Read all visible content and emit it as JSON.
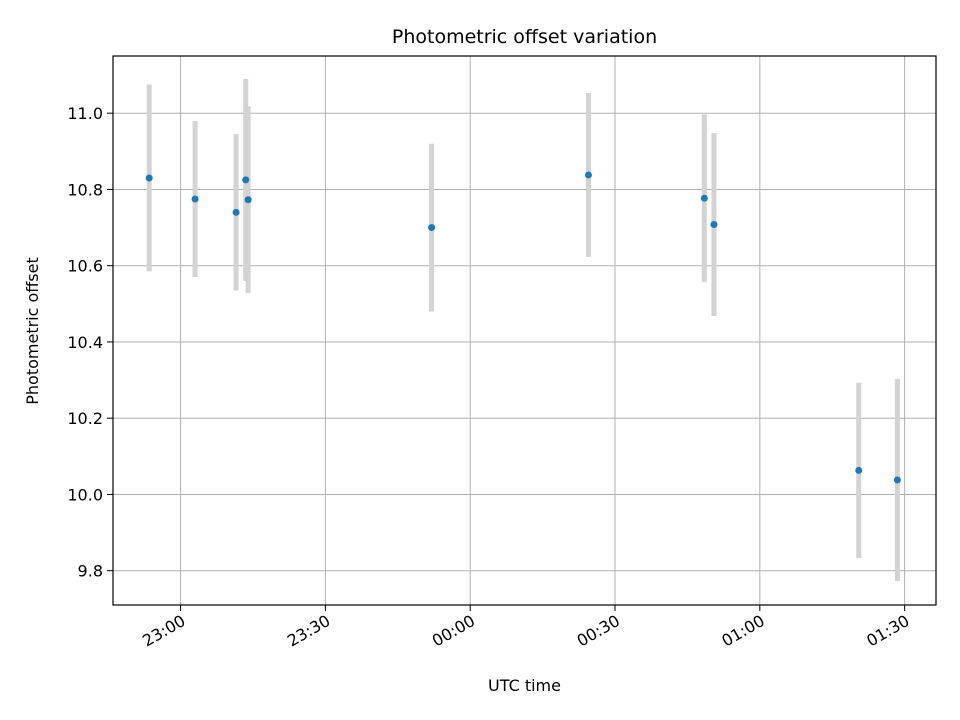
{
  "chart_data": {
    "type": "scatter",
    "title": "Photometric offset variation",
    "xlabel": "UTC time",
    "ylabel": "Photometric offset",
    "grid": true,
    "x_axis_type": "time",
    "xlim": [
      "22:46:00",
      "01:36:30"
    ],
    "ylim": [
      9.71,
      11.15
    ],
    "x_ticks": [
      "23:00",
      "23:30",
      "00:00",
      "00:30",
      "01:00",
      "01:30"
    ],
    "y_ticks": [
      9.8,
      10.0,
      10.2,
      10.4,
      10.6,
      10.8,
      11.0
    ],
    "marker_color": "#1f77b4",
    "errorbar_color": "#d3d3d3",
    "points": [
      {
        "x": "22:53:30",
        "y": 10.83,
        "yerr": 0.245
      },
      {
        "x": "23:03:00",
        "y": 10.775,
        "yerr": 0.205
      },
      {
        "x": "23:11:30",
        "y": 10.74,
        "yerr": 0.205
      },
      {
        "x": "23:13:30",
        "y": 10.825,
        "yerr": 0.265
      },
      {
        "x": "23:14:00",
        "y": 10.773,
        "yerr": 0.245
      },
      {
        "x": "23:52:00",
        "y": 10.7,
        "yerr": 0.22
      },
      {
        "x": "00:24:30",
        "y": 10.838,
        "yerr": 0.215
      },
      {
        "x": "00:48:30",
        "y": 10.777,
        "yerr": 0.22
      },
      {
        "x": "00:50:30",
        "y": 10.708,
        "yerr": 0.24
      },
      {
        "x": "01:20:30",
        "y": 10.063,
        "yerr": 0.23
      },
      {
        "x": "01:28:30",
        "y": 10.038,
        "yerr": 0.265
      }
    ]
  }
}
